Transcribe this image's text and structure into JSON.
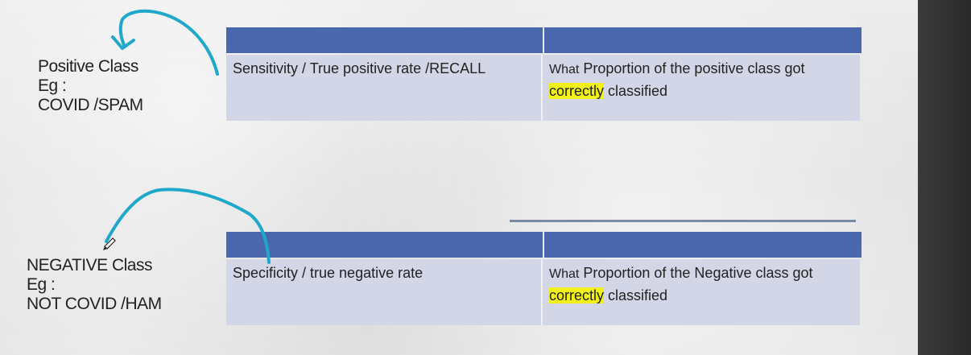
{
  "positive": {
    "line1": "Positive Class",
    "line2": "Eg :",
    "line3": "COVID /SPAM",
    "metric": "Sensitivity / True positive rate /RECALL",
    "desc_what": "What",
    "desc_main": " Proportion of the positive class got",
    "desc_highlight": "correctly",
    "desc_end": " classified"
  },
  "negative": {
    "line1": "NEGATIVE Class",
    "line2": "Eg :",
    "line3": "NOT COVID /HAM",
    "metric": "Specificity / true negative rate",
    "desc_what": "What",
    "desc_main": " Proportion of the Negative class got",
    "desc_highlight": "correctly",
    "desc_end": " classified"
  },
  "colors": {
    "header": "#4a67ad",
    "cell": "#d2d6e6",
    "highlight": "#f2f21a",
    "annotation": "#1fa8c9"
  }
}
